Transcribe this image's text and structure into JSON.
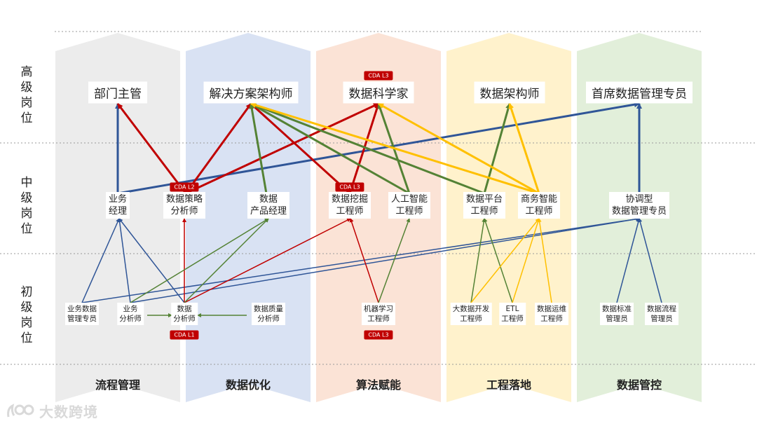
{
  "levels": [
    {
      "id": "senior",
      "label": "高级岗位"
    },
    {
      "id": "middle",
      "label": "中级岗位"
    },
    {
      "id": "junior",
      "label": "初级岗位"
    }
  ],
  "columns": [
    {
      "id": "c1",
      "label": "流程管理",
      "color": "#ececec"
    },
    {
      "id": "c2",
      "label": "数据优化",
      "color": "#d9e2f3"
    },
    {
      "id": "c3",
      "label": "算法赋能",
      "color": "#fbe3d6"
    },
    {
      "id": "c4",
      "label": "工程落地",
      "color": "#fff2cc"
    },
    {
      "id": "c5",
      "label": "数据管控",
      "color": "#e2efda"
    }
  ],
  "senior_roles": {
    "dept_head": "部门主管",
    "solution_architect": "解决方案架构师",
    "data_scientist": "数据科学家",
    "data_architect": "数据架构师",
    "cdo": "首席数据管理专员"
  },
  "middle_roles": {
    "biz_manager": "业务\n经理",
    "strategy_analyst": "数据策略\n分析师",
    "product_manager": "数据\n产品经理",
    "mining_engineer": "数据挖掘\n工程师",
    "ai_engineer": "人工智能\n工程师",
    "platform_engineer": "数据平台\n工程师",
    "bi_engineer": "商务智能\n工程师",
    "governance_specialist": "协调型\n数据管理专员"
  },
  "junior_roles": {
    "biz_data_specialist": "业务数据\n管理专员",
    "biz_analyst": "业务\n分析师",
    "data_analyst": "数据\n分析师",
    "quality_analyst": "数据质量\n分析师",
    "ml_engineer": "机器学习\n工程师",
    "bigdata_dev": "大数据开发\n工程师",
    "etl_engineer": "ETL\n工程师",
    "ops_engineer": "数据运维\n工程师",
    "standards_manager": "数据标准\n管理员",
    "process_manager": "数据流程\n管理员"
  },
  "badges": {
    "scientist": "CDA L3",
    "strategy": "CDA L2",
    "mining": "CDA L3",
    "analyst": "CDA L1",
    "ml": "CDA L3"
  },
  "edge_colors": {
    "blue": "#2f5597",
    "red": "#c00000",
    "green": "#548235",
    "yellow": "#ffc000"
  },
  "logo": {
    "text": "大数跨境"
  }
}
